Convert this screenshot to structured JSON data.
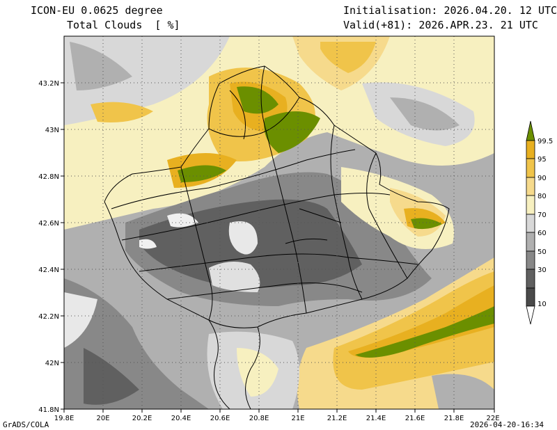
{
  "header": {
    "model": "ICON-EU 0.0625 degree",
    "field": "Total Clouds  [ %]",
    "init": "Initialisation: 2026.04.20. 12 UTC",
    "valid": "Valid(+81): 2026.APR.23. 21 UTC"
  },
  "axes": {
    "x_ticks": [
      "19.8E",
      "20E",
      "20.2E",
      "20.4E",
      "20.6E",
      "20.8E",
      "21E",
      "21.2E",
      "21.4E",
      "21.6E",
      "21.8E",
      "22E"
    ],
    "y_ticks": [
      "41.8N",
      "42N",
      "42.2N",
      "42.4N",
      "42.6N",
      "42.8N",
      "43N",
      "43.2N"
    ]
  },
  "colorbar": {
    "labels": [
      "99.5",
      "95",
      "90",
      "80",
      "70",
      "60",
      "50",
      "30",
      "10"
    ],
    "colors": [
      "#6b8f00",
      "#e8b020",
      "#f0c44a",
      "#f6da8c",
      "#f7f0c0",
      "#d8d8d8",
      "#b0b0b0",
      "#888888",
      "#606060",
      "#ffffff"
    ]
  },
  "footer": {
    "left": "GrADS/COLA",
    "right": "2026-04-20-16:34"
  }
}
